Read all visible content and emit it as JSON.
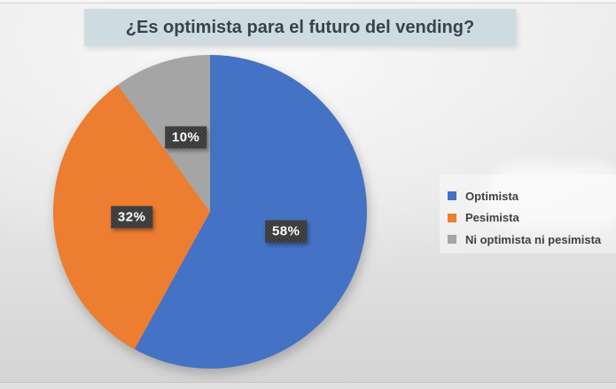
{
  "title": "¿Es optimista para el futuro del vending?",
  "chart_data": {
    "type": "pie",
    "title": "¿Es optimista para el futuro del vending?",
    "categories": [
      "Optimista",
      "Pesimista",
      "Ni optimista ni pesimista"
    ],
    "values": [
      58,
      32,
      10
    ],
    "labels": [
      "58%",
      "32%",
      "10%"
    ],
    "colors": [
      "#4472C4",
      "#ED7D31",
      "#A5A5A5"
    ],
    "start_angle_deg": 0,
    "direction": "clockwise",
    "legend_position": "right",
    "data_label_text_color": "#FFFFFF",
    "data_label_box_color": "#3E3E3E"
  },
  "legend": {
    "items": [
      {
        "label": "Optimista",
        "color": "#4472C4"
      },
      {
        "label": "Pesimista",
        "color": "#ED7D31"
      },
      {
        "label": "Ni optimista ni pesimista",
        "color": "#A5A5A5"
      }
    ]
  }
}
